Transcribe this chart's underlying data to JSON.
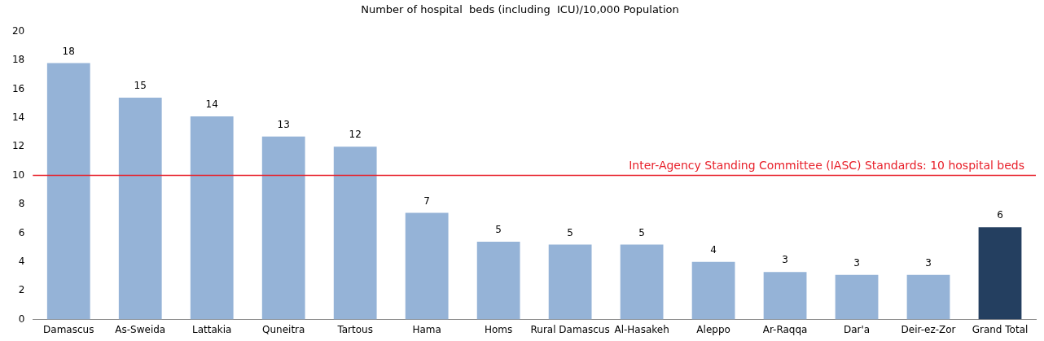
{
  "chart_data": {
    "type": "bar",
    "title": "Number of hospital  beds (including  ICU)/10,000 Population",
    "categories": [
      "Damascus",
      "As-Sweida",
      "Lattakia",
      "Quneitra",
      "Tartous",
      "Hama",
      "Homs",
      "Rural Damascus",
      "Al-Hasakeh",
      "Aleppo",
      "Ar-Raqqa",
      "Dar'a",
      "Deir-ez-Zor",
      "Grand Total"
    ],
    "values": [
      17.8,
      15.4,
      14.1,
      12.7,
      12.0,
      7.4,
      5.4,
      5.2,
      5.2,
      4.0,
      3.3,
      3.1,
      3.1,
      6.4
    ],
    "value_labels": [
      "18",
      "15",
      "14",
      "13",
      "12",
      "7",
      "5",
      "5",
      "5",
      "4",
      "3",
      "3",
      "3",
      "6"
    ],
    "colors": [
      "#95b3d7",
      "#95b3d7",
      "#95b3d7",
      "#95b3d7",
      "#95b3d7",
      "#95b3d7",
      "#95b3d7",
      "#95b3d7",
      "#95b3d7",
      "#95b3d7",
      "#95b3d7",
      "#95b3d7",
      "#95b3d7",
      "#243f60"
    ],
    "ylim": [
      0,
      20
    ],
    "yticks": [
      0,
      2,
      4,
      6,
      8,
      10,
      12,
      14,
      16,
      18,
      20
    ],
    "grid": false,
    "legend": false,
    "ref_lines": [
      {
        "axis": "y",
        "value": 10,
        "label": "Inter-Agency Standing Committee (IASC) Standards: 10 hospital beds",
        "color": "#e8202a"
      }
    ]
  }
}
